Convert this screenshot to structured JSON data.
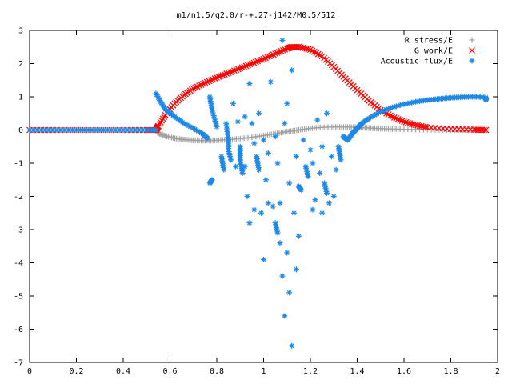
{
  "chart_data": {
    "type": "scatter",
    "title": "m1/n1.5/q2.0/r-+.27-j142/M0.5/512",
    "xlabel": "",
    "ylabel": "",
    "xlim": [
      0,
      2
    ],
    "ylim": [
      -7,
      3
    ],
    "x_ticks": [
      "0",
      "0.2",
      "0.4",
      "0.6",
      "0.8",
      "1",
      "1.2",
      "1.4",
      "1.6",
      "1.8",
      "2"
    ],
    "y_ticks": [
      "3",
      "2",
      "1",
      "0",
      "-1",
      "-2",
      "-3",
      "-4",
      "-5",
      "-6",
      "-7"
    ],
    "legend_position": "top-right",
    "grid": false,
    "series": [
      {
        "name": "R stress/E",
        "marker": "plus",
        "color": "#a0a0a0",
        "points": [
          [
            0.0,
            0
          ],
          [
            0.1,
            0
          ],
          [
            0.2,
            0
          ],
          [
            0.3,
            0
          ],
          [
            0.4,
            0
          ],
          [
            0.5,
            0
          ],
          [
            0.54,
            0
          ],
          [
            0.55,
            -0.1
          ],
          [
            0.58,
            -0.18
          ],
          [
            0.62,
            -0.25
          ],
          [
            0.66,
            -0.29
          ],
          [
            0.7,
            -0.31
          ],
          [
            0.75,
            -0.32
          ],
          [
            0.8,
            -0.31
          ],
          [
            0.85,
            -0.29
          ],
          [
            0.9,
            -0.26
          ],
          [
            0.95,
            -0.22
          ],
          [
            1.0,
            -0.17
          ],
          [
            1.05,
            -0.11
          ],
          [
            1.1,
            -0.05
          ],
          [
            1.15,
            0.0
          ],
          [
            1.2,
            0.05
          ],
          [
            1.25,
            0.08
          ],
          [
            1.3,
            0.09
          ],
          [
            1.35,
            0.09
          ],
          [
            1.4,
            0.08
          ],
          [
            1.45,
            0.06
          ],
          [
            1.5,
            0.04
          ],
          [
            1.55,
            0.03
          ],
          [
            1.6,
            0.02
          ],
          [
            1.7,
            0.01
          ],
          [
            1.8,
            0.0
          ],
          [
            1.9,
            0.0
          ],
          [
            1.95,
            0.0
          ]
        ]
      },
      {
        "name": "G work/E",
        "marker": "cross",
        "color": "#ff0000",
        "points": [
          [
            0.0,
            0
          ],
          [
            0.1,
            0
          ],
          [
            0.2,
            0
          ],
          [
            0.3,
            0
          ],
          [
            0.4,
            0
          ],
          [
            0.5,
            0
          ],
          [
            0.54,
            0
          ],
          [
            0.55,
            0.12
          ],
          [
            0.58,
            0.45
          ],
          [
            0.62,
            0.8
          ],
          [
            0.66,
            1.05
          ],
          [
            0.7,
            1.25
          ],
          [
            0.75,
            1.42
          ],
          [
            0.8,
            1.58
          ],
          [
            0.85,
            1.72
          ],
          [
            0.9,
            1.86
          ],
          [
            0.95,
            2.0
          ],
          [
            1.0,
            2.14
          ],
          [
            1.05,
            2.3
          ],
          [
            1.1,
            2.45
          ],
          [
            1.12,
            2.5
          ],
          [
            1.15,
            2.5
          ],
          [
            1.2,
            2.42
          ],
          [
            1.25,
            2.22
          ],
          [
            1.3,
            1.9
          ],
          [
            1.35,
            1.55
          ],
          [
            1.4,
            1.2
          ],
          [
            1.45,
            0.88
          ],
          [
            1.5,
            0.6
          ],
          [
            1.55,
            0.4
          ],
          [
            1.6,
            0.25
          ],
          [
            1.65,
            0.15
          ],
          [
            1.7,
            0.08
          ],
          [
            1.8,
            0.03
          ],
          [
            1.9,
            0.01
          ],
          [
            1.95,
            0.0
          ]
        ]
      },
      {
        "name": "Acoustic flux/E",
        "marker": "star",
        "color": "#1e88e5",
        "points": [
          [
            0.0,
            0
          ],
          [
            0.1,
            0
          ],
          [
            0.2,
            0
          ],
          [
            0.3,
            0
          ],
          [
            0.4,
            0
          ],
          [
            0.5,
            0
          ],
          [
            0.54,
            0
          ],
          [
            0.54,
            1.1
          ],
          [
            0.56,
            0.85
          ],
          [
            0.58,
            0.62
          ],
          [
            0.62,
            0.4
          ],
          [
            0.66,
            0.2
          ],
          [
            0.7,
            0.05
          ],
          [
            0.74,
            -0.12
          ],
          [
            0.76,
            -0.25
          ],
          [
            0.77,
            -1.6
          ],
          [
            0.78,
            -1.5
          ],
          [
            0.77,
            1.0
          ],
          [
            0.78,
            0.6
          ],
          [
            0.8,
            0.1
          ],
          [
            0.82,
            -0.8
          ],
          [
            0.83,
            -1.2
          ],
          [
            0.84,
            0.2
          ],
          [
            0.85,
            -0.3
          ],
          [
            0.85,
            -0.6
          ],
          [
            0.86,
            -0.9
          ],
          [
            0.87,
            0.8
          ],
          [
            0.88,
            -1.1
          ],
          [
            0.89,
            0.25
          ],
          [
            0.9,
            -0.5
          ],
          [
            0.9,
            -0.9
          ],
          [
            0.91,
            -1.3
          ],
          [
            0.92,
            0.4
          ],
          [
            0.92,
            -1.1
          ],
          [
            0.93,
            -2.0
          ],
          [
            0.94,
            1.4
          ],
          [
            0.94,
            -2.8
          ],
          [
            0.95,
            0.2
          ],
          [
            0.96,
            -0.4
          ],
          [
            0.96,
            -2.4
          ],
          [
            0.97,
            -0.8
          ],
          [
            0.98,
            -1.2
          ],
          [
            0.98,
            0.5
          ],
          [
            0.99,
            -2.5
          ],
          [
            1.0,
            -0.3
          ],
          [
            1.0,
            -3.9
          ],
          [
            1.01,
            -1.5
          ],
          [
            1.02,
            -0.7
          ],
          [
            1.02,
            -2.2
          ],
          [
            1.03,
            1.45
          ],
          [
            1.04,
            -2.3
          ],
          [
            1.05,
            -0.2
          ],
          [
            1.05,
            -2.8
          ],
          [
            1.06,
            -3.1
          ],
          [
            1.06,
            -1.0
          ],
          [
            1.07,
            -3.4
          ],
          [
            1.07,
            -2.2
          ],
          [
            1.08,
            2.7
          ],
          [
            1.08,
            -4.4
          ],
          [
            1.09,
            0.2
          ],
          [
            1.09,
            -5.6
          ],
          [
            1.1,
            0.8
          ],
          [
            1.1,
            -3.7
          ],
          [
            1.11,
            -4.9
          ],
          [
            1.11,
            -1.6
          ],
          [
            1.12,
            1.8
          ],
          [
            1.12,
            -6.5
          ],
          [
            1.13,
            -2.5
          ],
          [
            1.14,
            -4.2
          ],
          [
            1.14,
            -0.8
          ],
          [
            1.15,
            -3.2
          ],
          [
            1.15,
            -1.7
          ],
          [
            1.16,
            -1.8
          ],
          [
            1.17,
            -0.3
          ],
          [
            1.18,
            -1.1
          ],
          [
            1.19,
            -1.4
          ],
          [
            1.2,
            -0.6
          ],
          [
            1.21,
            -2.4
          ],
          [
            1.21,
            -1.0
          ],
          [
            1.22,
            -2.1
          ],
          [
            1.23,
            0.3
          ],
          [
            1.24,
            -1.3
          ],
          [
            1.25,
            -2.5
          ],
          [
            1.25,
            -0.5
          ],
          [
            1.26,
            -1.6
          ],
          [
            1.27,
            -1.9
          ],
          [
            1.27,
            0.5
          ],
          [
            1.28,
            -2.2
          ],
          [
            1.29,
            -0.8
          ],
          [
            1.3,
            -2.0
          ],
          [
            1.31,
            -1.2
          ],
          [
            1.32,
            -0.5
          ],
          [
            1.33,
            -0.9
          ],
          [
            1.34,
            -0.2
          ],
          [
            1.36,
            -0.3
          ],
          [
            1.38,
            -0.1
          ],
          [
            1.4,
            0.05
          ],
          [
            1.42,
            0.2
          ],
          [
            1.45,
            0.35
          ],
          [
            1.5,
            0.55
          ],
          [
            1.55,
            0.68
          ],
          [
            1.6,
            0.78
          ],
          [
            1.65,
            0.85
          ],
          [
            1.7,
            0.9
          ],
          [
            1.75,
            0.94
          ],
          [
            1.8,
            0.97
          ],
          [
            1.85,
            0.99
          ],
          [
            1.9,
            1.0
          ],
          [
            1.95,
            0.98
          ],
          [
            1.95,
            0.9
          ]
        ]
      }
    ]
  }
}
